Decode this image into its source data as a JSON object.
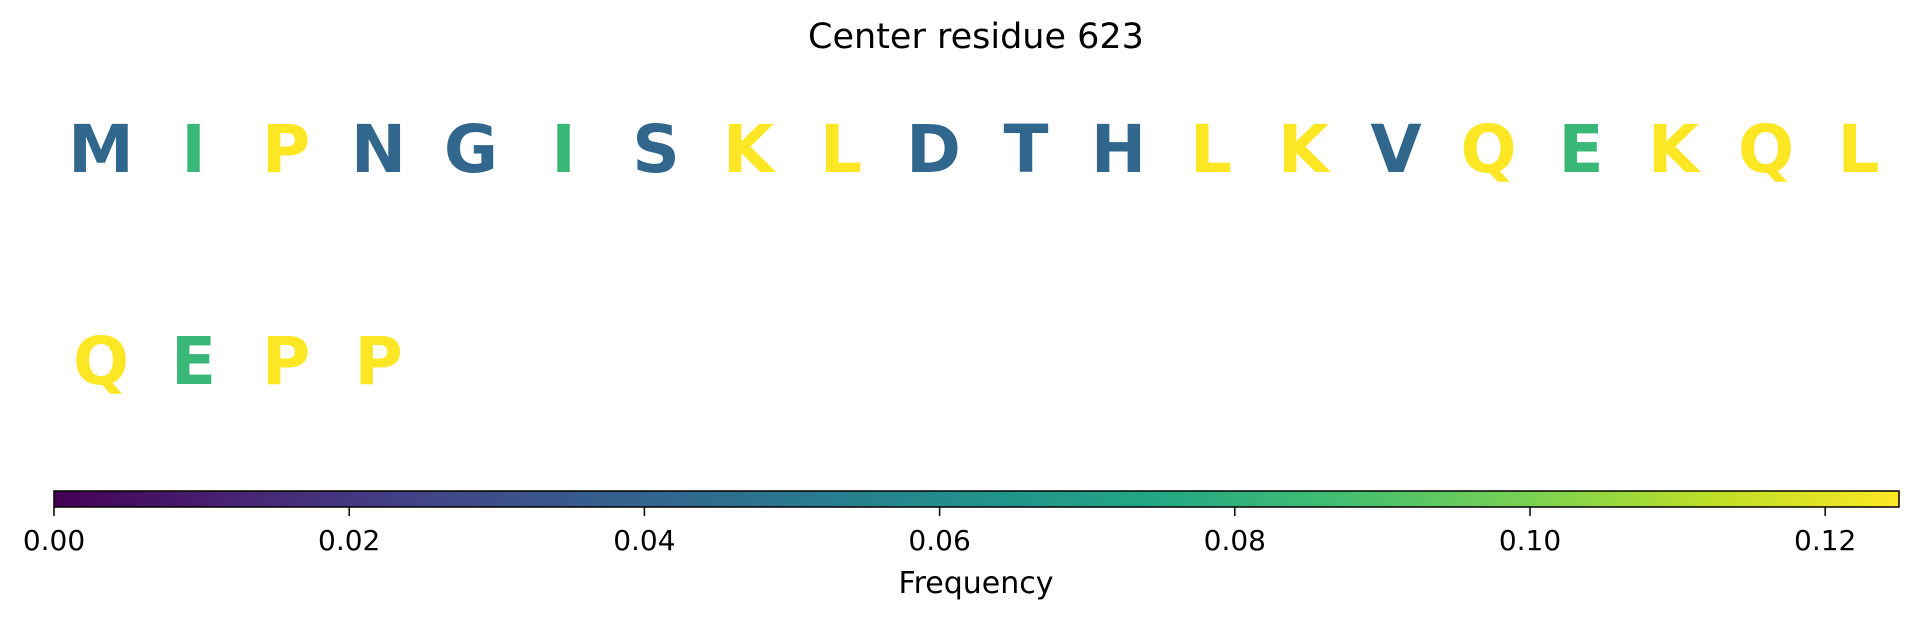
{
  "chart_data": {
    "type": "heatmap",
    "title": "Center residue 623",
    "residues": [
      {
        "letter": "M",
        "value": 0.0417
      },
      {
        "letter": "I",
        "value": 0.0833
      },
      {
        "letter": "P",
        "value": 0.125
      },
      {
        "letter": "N",
        "value": 0.0417
      },
      {
        "letter": "G",
        "value": 0.0417
      },
      {
        "letter": "I",
        "value": 0.0833
      },
      {
        "letter": "S",
        "value": 0.0417
      },
      {
        "letter": "K",
        "value": 0.125
      },
      {
        "letter": "L",
        "value": 0.125
      },
      {
        "letter": "D",
        "value": 0.0417
      },
      {
        "letter": "T",
        "value": 0.0417
      },
      {
        "letter": "H",
        "value": 0.0417
      },
      {
        "letter": "L",
        "value": 0.125
      },
      {
        "letter": "K",
        "value": 0.125
      },
      {
        "letter": "V",
        "value": 0.0417
      },
      {
        "letter": "Q",
        "value": 0.125
      },
      {
        "letter": "E",
        "value": 0.0833
      },
      {
        "letter": "K",
        "value": 0.125
      },
      {
        "letter": "Q",
        "value": 0.125
      },
      {
        "letter": "L",
        "value": 0.125
      },
      {
        "letter": "Q",
        "value": 0.125
      },
      {
        "letter": "E",
        "value": 0.0833
      },
      {
        "letter": "P",
        "value": 0.125
      },
      {
        "letter": "P",
        "value": 0.125
      }
    ],
    "colorbar": {
      "label": "Frequency",
      "range": [
        0,
        0.125
      ],
      "ticks": [
        0.0,
        0.02,
        0.04,
        0.06,
        0.08,
        0.1,
        0.12
      ],
      "tick_labels": [
        "0.00",
        "0.02",
        "0.04",
        "0.06",
        "0.08",
        "0.10",
        "0.12"
      ],
      "colormap": "viridis"
    }
  }
}
